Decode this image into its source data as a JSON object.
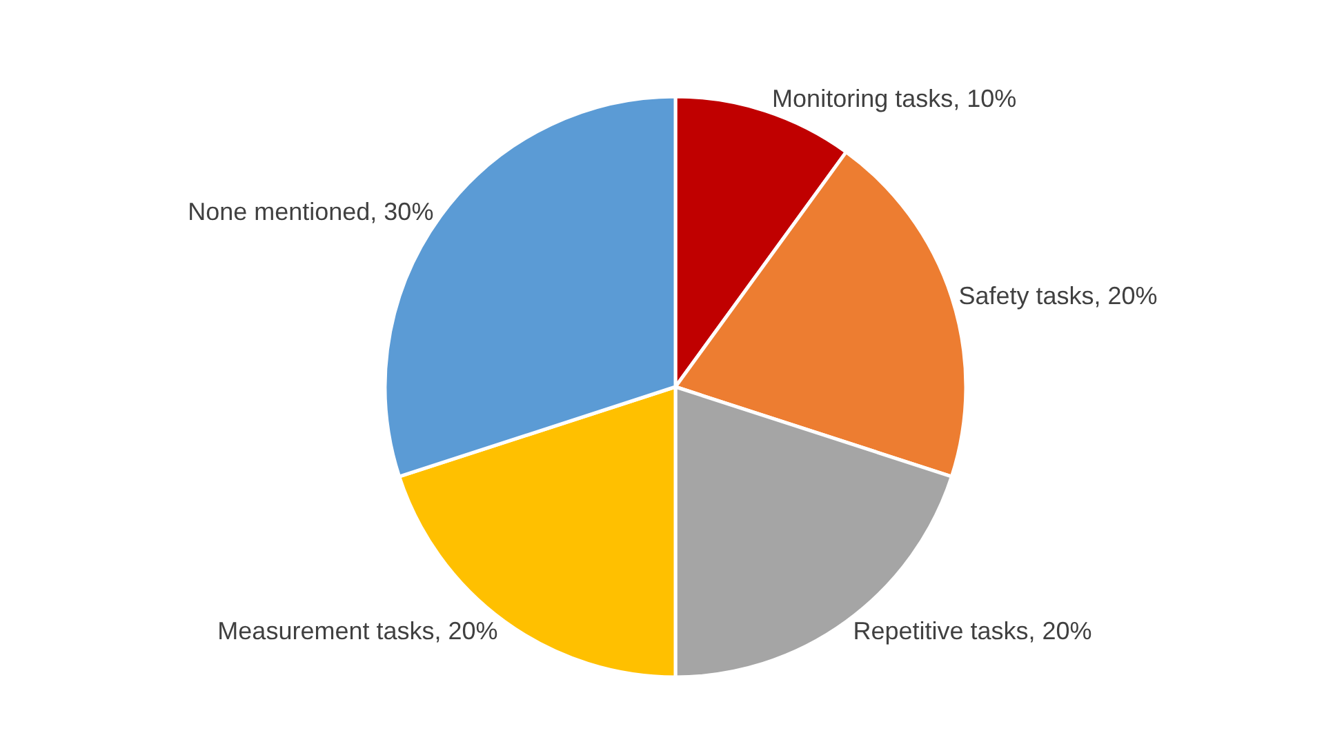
{
  "chart_data": {
    "type": "pie",
    "categories": [
      "Monitoring tasks",
      "Safety tasks",
      "Repetitive tasks",
      "Measurement tasks",
      "None mentioned"
    ],
    "values": [
      10,
      20,
      20,
      20,
      30
    ],
    "colors": [
      "#c00000",
      "#ed7d31",
      "#a5a5a5",
      "#ffc000",
      "#5b9bd5"
    ],
    "value_labels": [
      "10%",
      "20%",
      "20%",
      "20%",
      "30%"
    ],
    "legend": false
  }
}
